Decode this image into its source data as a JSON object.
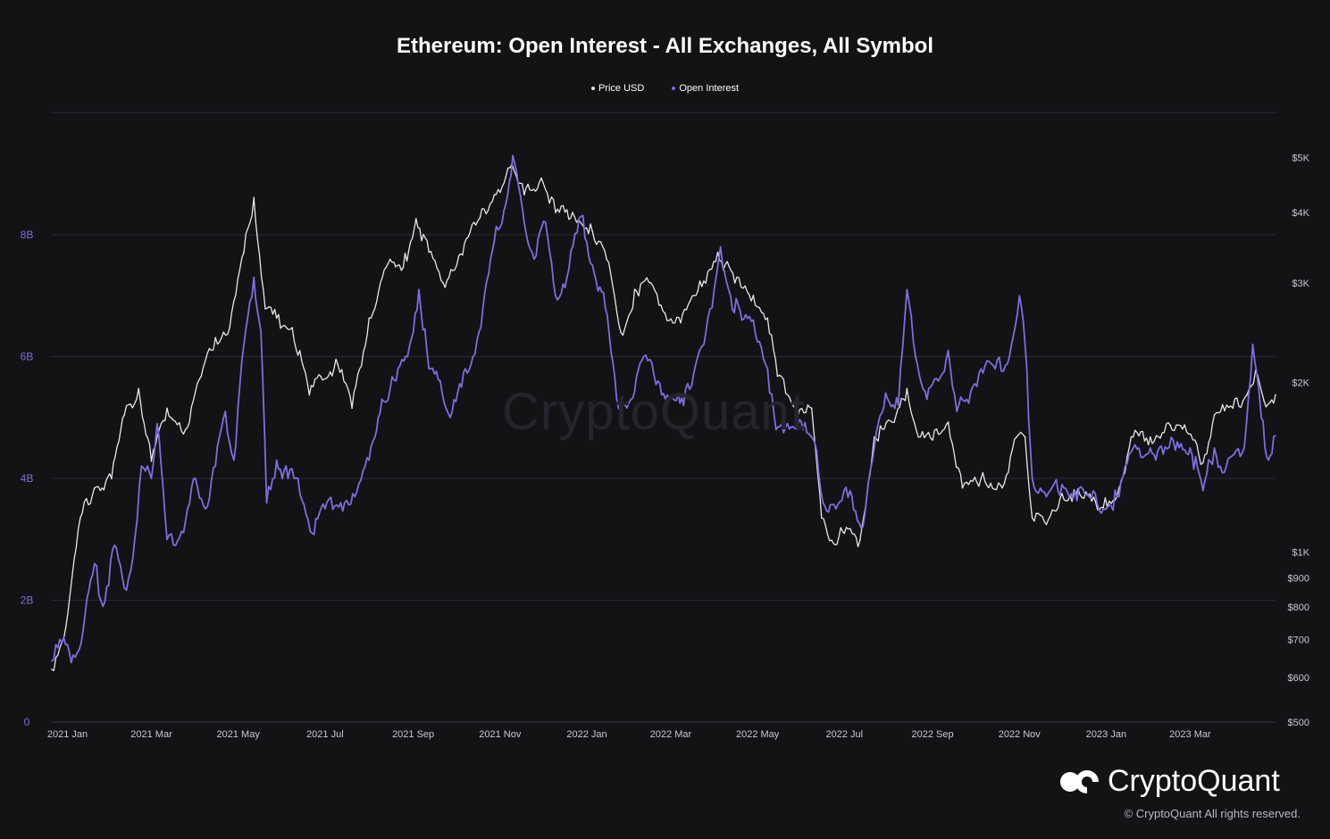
{
  "chart_data": {
    "type": "line",
    "title": "Ethereum: Open Interest - All Exchanges, All Symbol",
    "legend_placement": "top-center",
    "grid": true,
    "x_ticks": [
      "2021 Jan",
      "2021 Mar",
      "2021 May",
      "2021 Jul",
      "2021 Sep",
      "2021 Nov",
      "2022 Jan",
      "2022 Mar",
      "2022 May",
      "2022 Jul",
      "2022 Sep",
      "2022 Nov",
      "2023 Jan",
      "2023 Mar"
    ],
    "x_tick_dates": [
      "2021-01-01",
      "2021-03-01",
      "2021-05-01",
      "2021-07-01",
      "2021-09-01",
      "2021-11-01",
      "2022-01-01",
      "2022-03-01",
      "2022-05-01",
      "2022-07-01",
      "2022-09-01",
      "2022-11-01",
      "2023-01-01",
      "2023-03-01"
    ],
    "xlim": [
      "2020-12-21",
      "2023-04-30"
    ],
    "y_left": {
      "ticks": [
        "0",
        "2B",
        "4B",
        "6B",
        "8B"
      ],
      "tick_values": [
        0,
        2,
        4,
        6,
        8
      ],
      "ylim": [
        0,
        10
      ],
      "units": "billions USD"
    },
    "y_right": {
      "scale": "log",
      "ticks": [
        "$500",
        "$600",
        "$700",
        "$800",
        "$900",
        "$1K",
        "$2K",
        "$3K",
        "$4K",
        "$5K"
      ],
      "tick_values": [
        500,
        600,
        700,
        800,
        900,
        1000,
        2000,
        3000,
        4000,
        5000
      ],
      "ylim": [
        500,
        5800
      ]
    },
    "series": [
      {
        "name": "Price USD",
        "axis": "right",
        "color": "#e8e8ea",
        "points": [
          [
            "2020-12-21",
            620
          ],
          [
            "2020-12-31",
            740
          ],
          [
            "2021-01-10",
            1150
          ],
          [
            "2021-01-20",
            1300
          ],
          [
            "2021-02-01",
            1350
          ],
          [
            "2021-02-10",
            1750
          ],
          [
            "2021-02-20",
            1950
          ],
          [
            "2021-03-01",
            1450
          ],
          [
            "2021-03-12",
            1800
          ],
          [
            "2021-03-25",
            1650
          ],
          [
            "2021-04-05",
            2050
          ],
          [
            "2021-04-15",
            2400
          ],
          [
            "2021-04-25",
            2500
          ],
          [
            "2021-05-05",
            3400
          ],
          [
            "2021-05-12",
            4250
          ],
          [
            "2021-05-20",
            2700
          ],
          [
            "2021-05-28",
            2600
          ],
          [
            "2021-06-08",
            2500
          ],
          [
            "2021-06-20",
            1900
          ],
          [
            "2021-06-28",
            2050
          ],
          [
            "2021-07-10",
            2150
          ],
          [
            "2021-07-20",
            1800
          ],
          [
            "2021-08-01",
            2600
          ],
          [
            "2021-08-13",
            3200
          ],
          [
            "2021-08-25",
            3200
          ],
          [
            "2021-09-03",
            3900
          ],
          [
            "2021-09-12",
            3400
          ],
          [
            "2021-09-22",
            3000
          ],
          [
            "2021-10-03",
            3350
          ],
          [
            "2021-10-15",
            3800
          ],
          [
            "2021-10-28",
            4300
          ],
          [
            "2021-11-08",
            4800
          ],
          [
            "2021-11-18",
            4300
          ],
          [
            "2021-11-30",
            4600
          ],
          [
            "2021-12-10",
            4000
          ],
          [
            "2021-12-22",
            4000
          ],
          [
            "2022-01-05",
            3700
          ],
          [
            "2022-01-15",
            3300
          ],
          [
            "2022-01-25",
            2450
          ],
          [
            "2022-02-05",
            2900
          ],
          [
            "2022-02-15",
            3000
          ],
          [
            "2022-02-25",
            2650
          ],
          [
            "2022-03-08",
            2550
          ],
          [
            "2022-03-20",
            2900
          ],
          [
            "2022-04-03",
            3400
          ],
          [
            "2022-04-15",
            3000
          ],
          [
            "2022-04-28",
            2850
          ],
          [
            "2022-05-08",
            2600
          ],
          [
            "2022-05-15",
            2050
          ],
          [
            "2022-05-28",
            1800
          ],
          [
            "2022-06-08",
            1800
          ],
          [
            "2022-06-15",
            1150
          ],
          [
            "2022-06-22",
            1050
          ],
          [
            "2022-07-01",
            1080
          ],
          [
            "2022-07-12",
            1050
          ],
          [
            "2022-07-22",
            1600
          ],
          [
            "2022-08-05",
            1700
          ],
          [
            "2022-08-14",
            1950
          ],
          [
            "2022-08-22",
            1600
          ],
          [
            "2022-09-01",
            1580
          ],
          [
            "2022-09-12",
            1700
          ],
          [
            "2022-09-22",
            1300
          ],
          [
            "2022-10-05",
            1350
          ],
          [
            "2022-10-20",
            1300
          ],
          [
            "2022-10-30",
            1600
          ],
          [
            "2022-11-05",
            1600
          ],
          [
            "2022-11-10",
            1150
          ],
          [
            "2022-11-20",
            1120
          ],
          [
            "2022-12-01",
            1270
          ],
          [
            "2022-12-15",
            1250
          ],
          [
            "2022-12-30",
            1200
          ],
          [
            "2023-01-10",
            1300
          ],
          [
            "2023-01-20",
            1600
          ],
          [
            "2023-02-01",
            1600
          ],
          [
            "2023-02-15",
            1680
          ],
          [
            "2023-02-28",
            1620
          ],
          [
            "2023-03-10",
            1440
          ],
          [
            "2023-03-18",
            1750
          ],
          [
            "2023-03-31",
            1800
          ],
          [
            "2023-04-10",
            1900
          ],
          [
            "2023-04-16",
            2100
          ],
          [
            "2023-04-22",
            1850
          ],
          [
            "2023-04-30",
            1900
          ]
        ]
      },
      {
        "name": "Open Interest",
        "axis": "left",
        "color": "#7b6fe0",
        "points": [
          [
            "2020-12-21",
            1.0
          ],
          [
            "2020-12-28",
            1.3
          ],
          [
            "2021-01-05",
            1.1
          ],
          [
            "2021-01-12",
            1.5
          ],
          [
            "2021-01-20",
            2.6
          ],
          [
            "2021-01-26",
            1.9
          ],
          [
            "2021-02-03",
            2.9
          ],
          [
            "2021-02-10",
            2.2
          ],
          [
            "2021-02-16",
            2.7
          ],
          [
            "2021-02-22",
            4.2
          ],
          [
            "2021-03-01",
            4.0
          ],
          [
            "2021-03-05",
            4.9
          ],
          [
            "2021-03-12",
            3.0
          ],
          [
            "2021-03-18",
            2.9
          ],
          [
            "2021-03-25",
            3.3
          ],
          [
            "2021-04-01",
            4.0
          ],
          [
            "2021-04-08",
            3.5
          ],
          [
            "2021-04-15",
            4.2
          ],
          [
            "2021-04-22",
            5.1
          ],
          [
            "2021-04-28",
            4.3
          ],
          [
            "2021-05-05",
            6.2
          ],
          [
            "2021-05-12",
            7.3
          ],
          [
            "2021-05-17",
            6.4
          ],
          [
            "2021-05-21",
            3.6
          ],
          [
            "2021-05-28",
            4.3
          ],
          [
            "2021-06-05",
            4.0
          ],
          [
            "2021-06-12",
            4.0
          ],
          [
            "2021-06-22",
            3.1
          ],
          [
            "2021-07-01",
            3.5
          ],
          [
            "2021-07-12",
            3.6
          ],
          [
            "2021-07-22",
            3.7
          ],
          [
            "2021-08-01",
            4.3
          ],
          [
            "2021-08-10",
            5.3
          ],
          [
            "2021-08-20",
            5.6
          ],
          [
            "2021-08-28",
            6.0
          ],
          [
            "2021-09-05",
            7.1
          ],
          [
            "2021-09-12",
            5.8
          ],
          [
            "2021-09-20",
            5.6
          ],
          [
            "2021-09-27",
            5.0
          ],
          [
            "2021-10-05",
            5.5
          ],
          [
            "2021-10-13",
            6.0
          ],
          [
            "2021-10-20",
            6.8
          ],
          [
            "2021-10-28",
            7.9
          ],
          [
            "2021-11-05",
            8.5
          ],
          [
            "2021-11-10",
            9.3
          ],
          [
            "2021-11-18",
            8.2
          ],
          [
            "2021-11-25",
            7.6
          ],
          [
            "2021-12-03",
            8.2
          ],
          [
            "2021-12-10",
            7.0
          ],
          [
            "2021-12-18",
            7.3
          ],
          [
            "2021-12-28",
            8.3
          ],
          [
            "2022-01-05",
            7.5
          ],
          [
            "2022-01-14",
            6.8
          ],
          [
            "2022-01-22",
            5.3
          ],
          [
            "2022-02-01",
            5.3
          ],
          [
            "2022-02-10",
            6.0
          ],
          [
            "2022-02-20",
            5.6
          ],
          [
            "2022-03-01",
            5.3
          ],
          [
            "2022-03-10",
            5.2
          ],
          [
            "2022-03-20",
            6.0
          ],
          [
            "2022-03-30",
            6.8
          ],
          [
            "2022-04-05",
            7.8
          ],
          [
            "2022-04-12",
            7.0
          ],
          [
            "2022-04-20",
            6.6
          ],
          [
            "2022-04-28",
            6.6
          ],
          [
            "2022-05-08",
            5.8
          ],
          [
            "2022-05-14",
            4.8
          ],
          [
            "2022-05-22",
            4.9
          ],
          [
            "2022-06-02",
            4.8
          ],
          [
            "2022-06-10",
            4.6
          ],
          [
            "2022-06-16",
            3.6
          ],
          [
            "2022-06-25",
            3.5
          ],
          [
            "2022-07-05",
            3.8
          ],
          [
            "2022-07-14",
            3.2
          ],
          [
            "2022-07-22",
            4.5
          ],
          [
            "2022-07-30",
            5.4
          ],
          [
            "2022-08-08",
            5.2
          ],
          [
            "2022-08-14",
            7.1
          ],
          [
            "2022-08-20",
            6.0
          ],
          [
            "2022-08-28",
            5.3
          ],
          [
            "2022-09-05",
            5.6
          ],
          [
            "2022-09-12",
            6.1
          ],
          [
            "2022-09-18",
            5.1
          ],
          [
            "2022-09-25",
            5.3
          ],
          [
            "2022-10-05",
            5.8
          ],
          [
            "2022-10-15",
            5.8
          ],
          [
            "2022-10-25",
            6.0
          ],
          [
            "2022-11-01",
            7.0
          ],
          [
            "2022-11-05",
            6.2
          ],
          [
            "2022-11-10",
            4.0
          ],
          [
            "2022-11-20",
            3.7
          ],
          [
            "2022-12-01",
            3.9
          ],
          [
            "2022-12-10",
            3.8
          ],
          [
            "2022-12-20",
            3.7
          ],
          [
            "2022-12-30",
            3.5
          ],
          [
            "2023-01-10",
            3.7
          ],
          [
            "2023-01-20",
            4.5
          ],
          [
            "2023-02-01",
            4.5
          ],
          [
            "2023-02-10",
            4.4
          ],
          [
            "2023-02-20",
            4.6
          ],
          [
            "2023-03-01",
            4.5
          ],
          [
            "2023-03-10",
            3.8
          ],
          [
            "2023-03-18",
            4.5
          ],
          [
            "2023-03-25",
            4.1
          ],
          [
            "2023-04-01",
            4.4
          ],
          [
            "2023-04-08",
            4.5
          ],
          [
            "2023-04-14",
            6.2
          ],
          [
            "2023-04-20",
            5.0
          ],
          [
            "2023-04-25",
            4.3
          ],
          [
            "2023-04-30",
            4.7
          ]
        ]
      }
    ]
  },
  "watermark": "CryptoQuant",
  "brand": {
    "name": "CryptoQuant",
    "copyright": "© CryptoQuant All rights reserved."
  }
}
